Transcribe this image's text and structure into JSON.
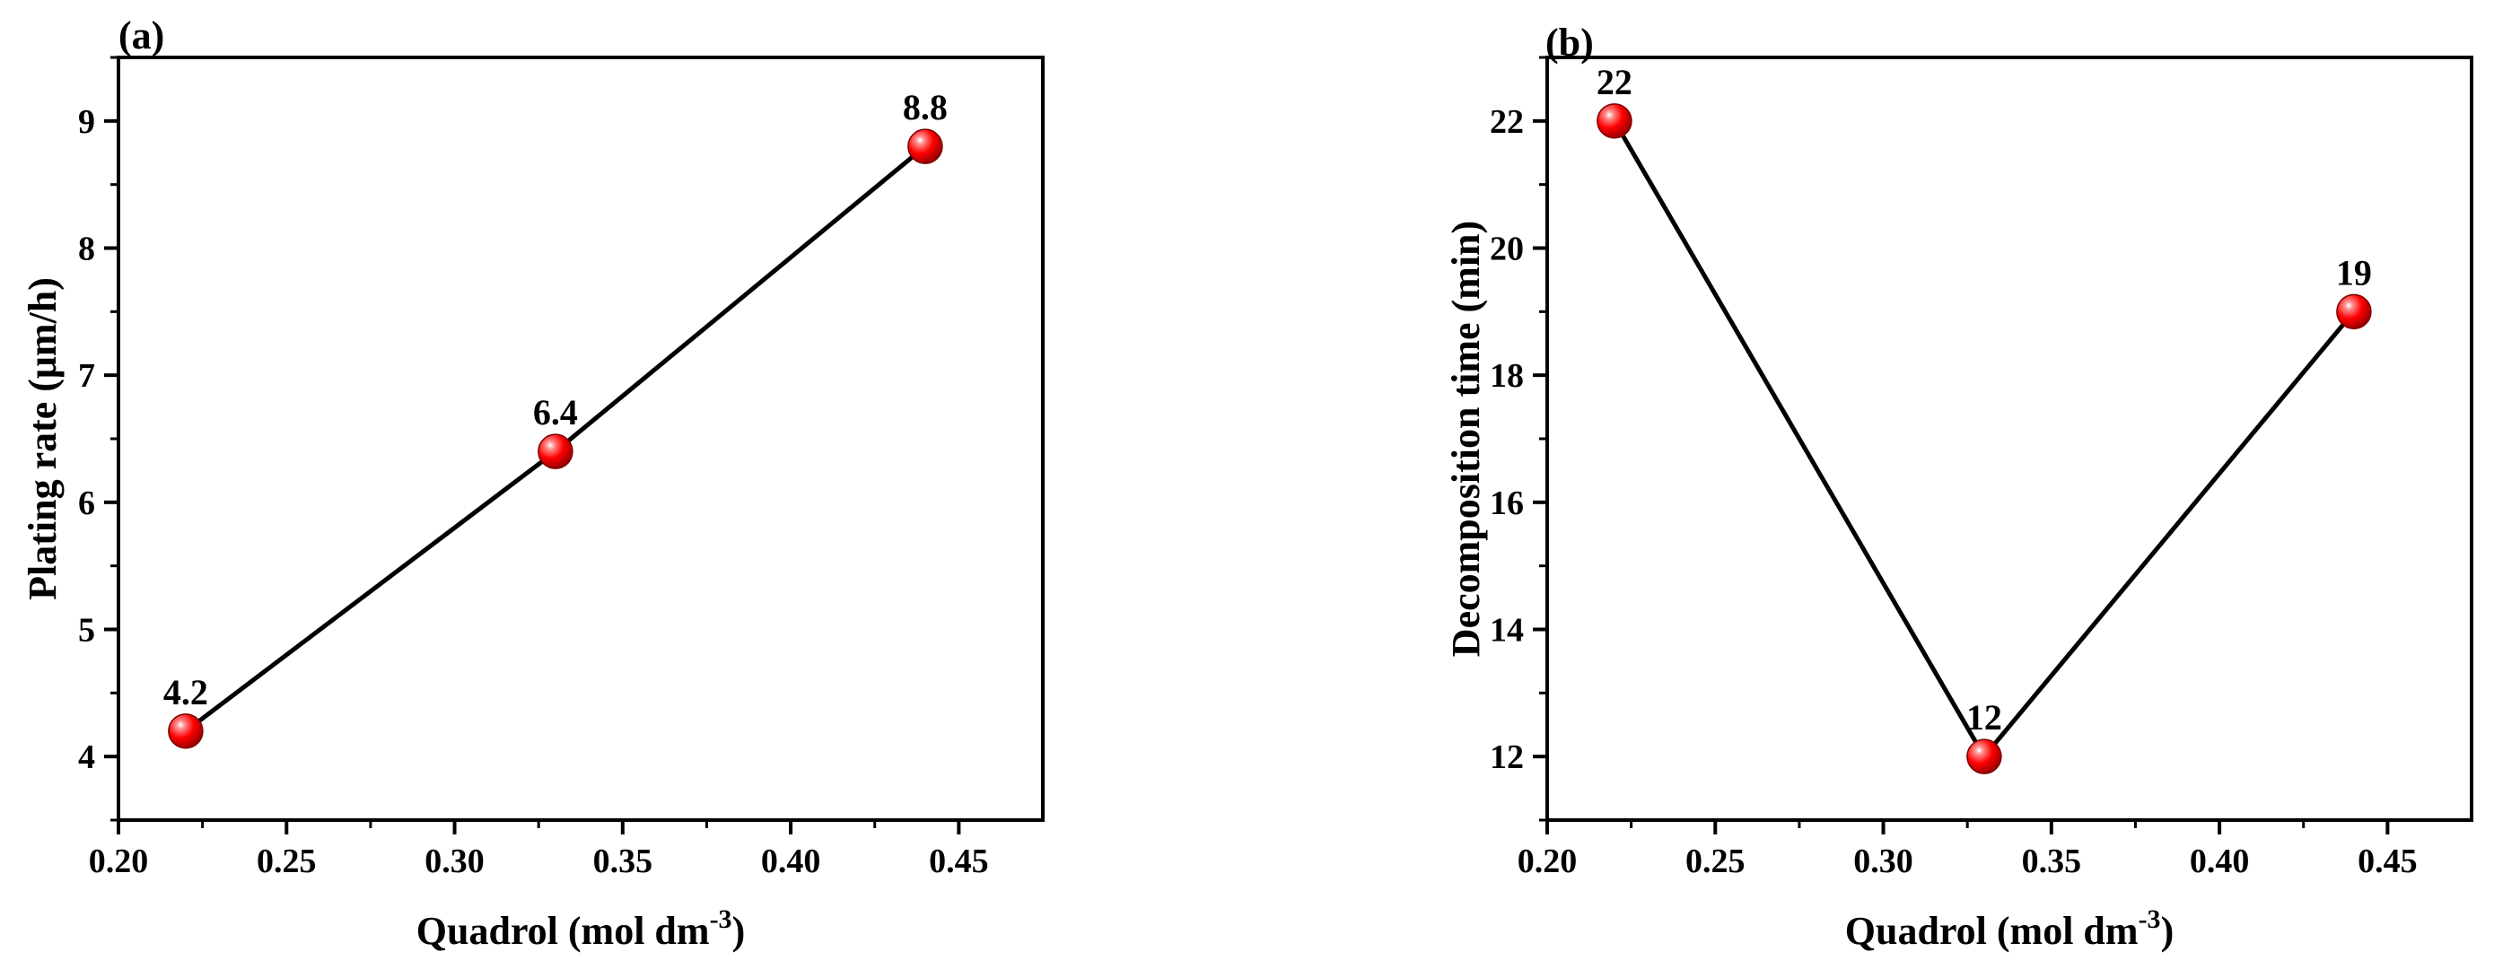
{
  "chart_data": [
    {
      "panel_label": "(a)",
      "type": "line",
      "x": [
        0.22,
        0.33,
        0.44
      ],
      "y": [
        4.2,
        6.4,
        8.8
      ],
      "point_labels": [
        "4.2",
        "6.4",
        "8.8"
      ],
      "xlabel": "Quadrol (mol dm",
      "xlabel_sup": "-3",
      "xlabel_end": ")",
      "ylabel": "Plating rate (μm/h)",
      "xlim": [
        0.2,
        0.475
      ],
      "ylim": [
        3.5,
        9.5
      ],
      "x_ticks": [
        0.2,
        0.25,
        0.3,
        0.35,
        0.4,
        0.45
      ],
      "x_tick_labels": [
        "0.20",
        "0.25",
        "0.30",
        "0.35",
        "0.40",
        "0.45"
      ],
      "y_ticks": [
        4,
        5,
        6,
        7,
        8,
        9
      ],
      "y_tick_labels": [
        "4",
        "5",
        "6",
        "7",
        "8",
        "9"
      ],
      "grid": false,
      "marker_color": "#ff0000",
      "line_color": "#000000"
    },
    {
      "panel_label": "(b)",
      "type": "line",
      "x": [
        0.22,
        0.33,
        0.44
      ],
      "y": [
        22,
        12,
        19
      ],
      "point_labels": [
        "22",
        "12",
        "19"
      ],
      "xlabel": "Quadrol (mol dm",
      "xlabel_sup": "-3",
      "xlabel_end": ")",
      "ylabel": "Decomposition time (min)",
      "xlim": [
        0.2,
        0.475
      ],
      "ylim": [
        11,
        23
      ],
      "x_ticks": [
        0.2,
        0.25,
        0.3,
        0.35,
        0.4,
        0.45
      ],
      "x_tick_labels": [
        "0.20",
        "0.25",
        "0.30",
        "0.35",
        "0.40",
        "0.45"
      ],
      "y_ticks": [
        12,
        14,
        16,
        18,
        20,
        22
      ],
      "y_tick_labels": [
        "12",
        "14",
        "16",
        "18",
        "20",
        "22"
      ],
      "grid": false,
      "marker_color": "#ff0000",
      "line_color": "#000000"
    }
  ]
}
